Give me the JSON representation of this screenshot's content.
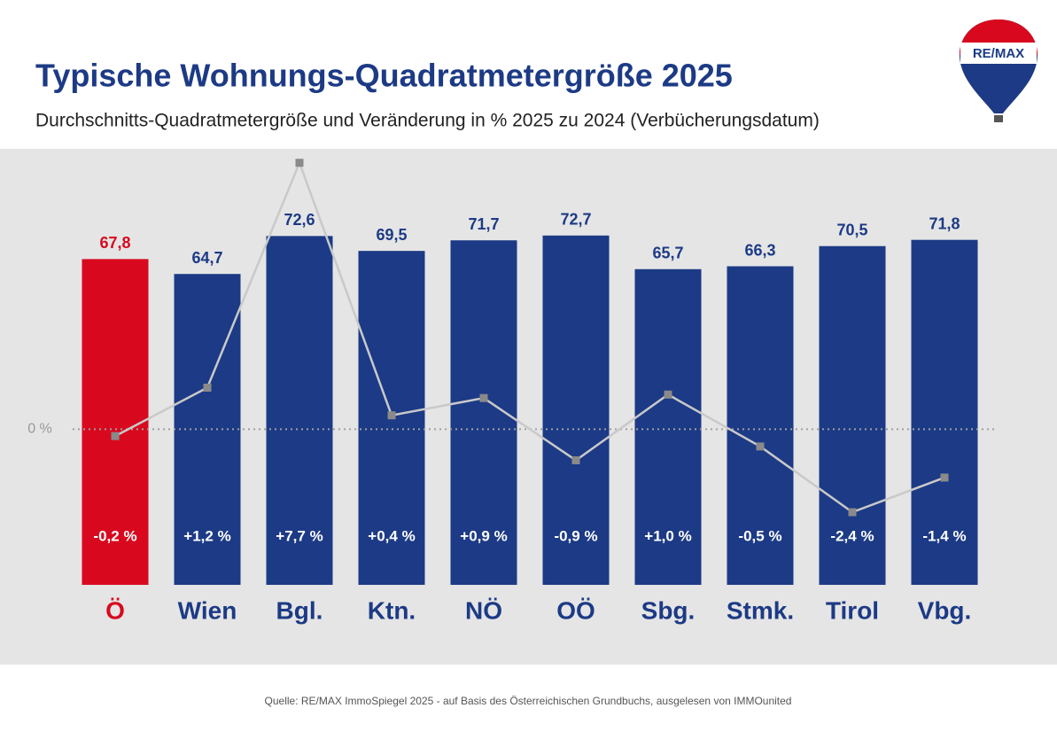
{
  "logo": "RE/MAX",
  "chart_data": {
    "type": "bar",
    "title": "Typische Wohnungs-Quadratmetergröße 2025",
    "subtitle": "Durchschnitts-Quadratmetergröße und Veränderung in % 2025 zu 2024 (Verbücherungsdatum)",
    "source": "Quelle: RE/MAX ImmoSpiegel 2025 - auf Basis des Österreichischen Grundbuchs, ausgelesen von IMMOunited",
    "categories": [
      "Ö",
      "Wien",
      "Bgl.",
      "Ktn.",
      "NÖ",
      "OÖ",
      "Sbg.",
      "Stmk.",
      "Tirol",
      "Vbg."
    ],
    "ylim": [
      0,
      90
    ],
    "y2lim": [
      -4.5,
      8
    ],
    "y2ticks": [
      {
        "value": 0,
        "label": "0 %"
      }
    ],
    "series": [
      {
        "type": "bar",
        "values": [
          67.8,
          64.7,
          72.6,
          69.5,
          71.7,
          72.7,
          65.7,
          66.3,
          70.5,
          71.8
        ],
        "value_labels": [
          "67,8",
          "64,7",
          "72,6",
          "69,5",
          "71,7",
          "72,7",
          "65,7",
          "66,3",
          "70,5",
          "71,8"
        ],
        "colors": [
          "#d8091e",
          "#1c3a85",
          "#1c3a85",
          "#1c3a85",
          "#1c3a85",
          "#1c3a85",
          "#1c3a85",
          "#1c3a85",
          "#1c3a85",
          "#1c3a85"
        ]
      },
      {
        "type": "line",
        "axis": "y2",
        "color": "#c9c9c9",
        "marker_color": "#8a8a8a",
        "values": [
          -0.2,
          1.2,
          7.7,
          0.4,
          0.9,
          -0.9,
          1.0,
          -0.5,
          -2.4,
          -1.4
        ],
        "value_labels": [
          "-0,2 %",
          "+1,2 %",
          "+7,7 %",
          "+0,4 %",
          "+0,9 %",
          "-0,9 %",
          "+1,0 %",
          "-0,5 %",
          "-2,4 %",
          "-1,4 %"
        ]
      }
    ]
  }
}
